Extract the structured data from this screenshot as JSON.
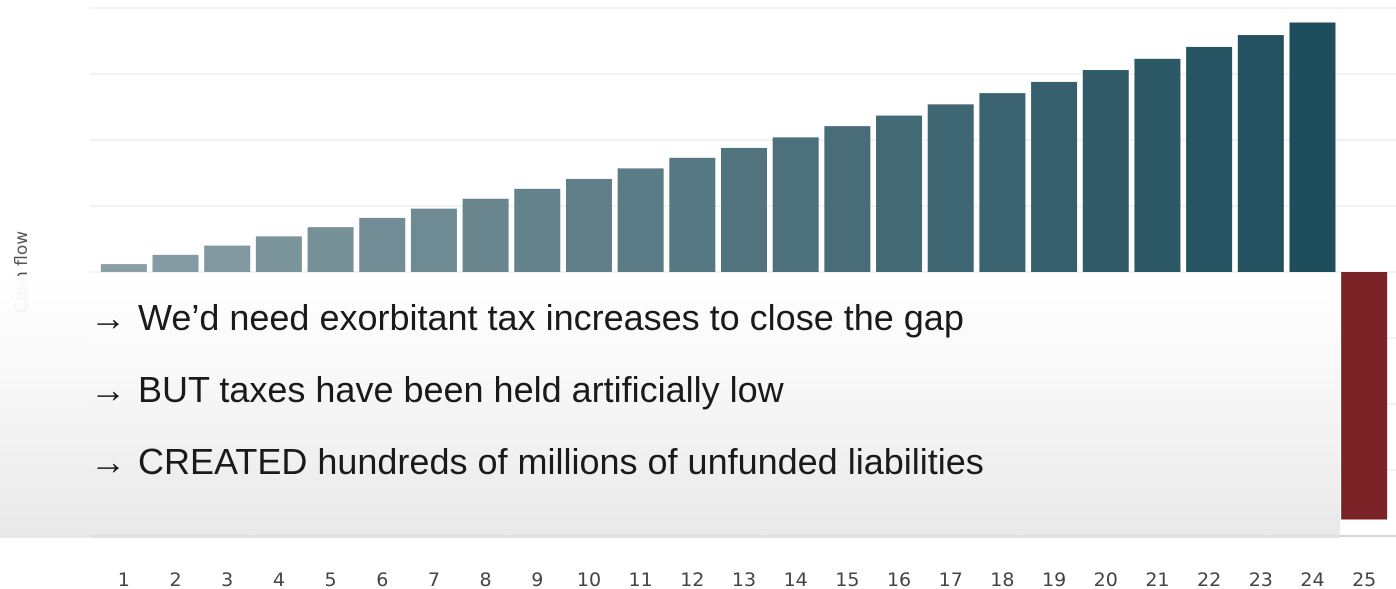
{
  "chart_data": {
    "type": "bar",
    "title": "",
    "xlabel": "",
    "ylabel": "Cash flow",
    "categories": [
      "1",
      "2",
      "3",
      "4",
      "5",
      "6",
      "7",
      "8",
      "9",
      "10",
      "11",
      "12",
      "13",
      "14",
      "15",
      "16",
      "17",
      "18",
      "19",
      "20",
      "21",
      "22",
      "23",
      "24",
      "25"
    ],
    "values": [
      1.2,
      2.6,
      4.0,
      5.4,
      6.8,
      8.2,
      9.6,
      11.1,
      12.6,
      14.1,
      15.7,
      17.3,
      18.8,
      20.4,
      22.1,
      23.7,
      25.4,
      27.1,
      28.8,
      30.6,
      32.3,
      34.1,
      35.9,
      37.8,
      -37.5
    ],
    "ylim": [
      -40,
      40
    ],
    "grid": true,
    "colors": {
      "positive_start": "#8a9fa6",
      "positive_end": "#1e4d5c",
      "negative": "#7b2226"
    }
  },
  "bullets": [
    {
      "arrow": "→",
      "text": "We’d need exorbitant tax increases to close the gap"
    },
    {
      "arrow": "→",
      "text": "BUT taxes have been held artificially low"
    },
    {
      "arrow": "→",
      "text": "CREATED hundreds of millions of unfunded liabilities"
    }
  ]
}
